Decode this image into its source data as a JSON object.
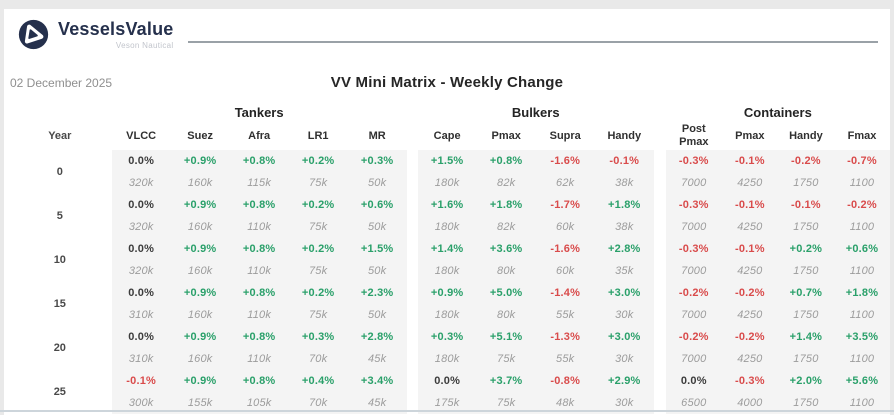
{
  "logo": {
    "brand": "VesselsValue",
    "sub_brand": "Veson Nautical"
  },
  "date": "02 December 2025",
  "title": "VV Mini Matrix - Weekly Change",
  "colors": {
    "positive_green": "#2aa06a",
    "negative_red": "#d94b4b",
    "neutral_dark": "#3c3c3c",
    "value_gray": "#9c9c9c",
    "block_background": "#f4f4f4",
    "brand_navy": "#25304c",
    "rule_gray": "#9aa1a7",
    "bottom_divider": "#cdd5db"
  },
  "table": {
    "year_header": "Year",
    "groups": [
      {
        "name": "Tankers",
        "columns": [
          "VLCC",
          "Suez",
          "Afra",
          "LR1",
          "MR"
        ]
      },
      {
        "name": "Bulkers",
        "columns": [
          "Cape",
          "Pmax",
          "Supra",
          "Handy"
        ]
      },
      {
        "name": "Containers",
        "columns": [
          "Post Pmax",
          "Pmax",
          "Handy",
          "Fmax"
        ]
      }
    ],
    "rows": [
      {
        "year": "0",
        "groups": [
          {
            "pct": [
              "0.0%",
              "+0.9%",
              "+0.8%",
              "+0.2%",
              "+0.3%"
            ],
            "values": [
              "320k",
              "160k",
              "115k",
              "75k",
              "50k"
            ]
          },
          {
            "pct": [
              "+1.5%",
              "+0.8%",
              "-1.6%",
              "-0.1%"
            ],
            "values": [
              "180k",
              "82k",
              "62k",
              "38k"
            ]
          },
          {
            "pct": [
              "-0.3%",
              "-0.1%",
              "-0.2%",
              "-0.7%"
            ],
            "values": [
              "7000",
              "4250",
              "1750",
              "1100"
            ]
          }
        ]
      },
      {
        "year": "5",
        "groups": [
          {
            "pct": [
              "0.0%",
              "+0.9%",
              "+0.8%",
              "+0.2%",
              "+0.6%"
            ],
            "values": [
              "320k",
              "160k",
              "110k",
              "75k",
              "50k"
            ]
          },
          {
            "pct": [
              "+1.6%",
              "+1.8%",
              "-1.7%",
              "+1.8%"
            ],
            "values": [
              "180k",
              "82k",
              "60k",
              "38k"
            ]
          },
          {
            "pct": [
              "-0.3%",
              "-0.1%",
              "-0.1%",
              "-0.2%"
            ],
            "values": [
              "7000",
              "4250",
              "1750",
              "1100"
            ]
          }
        ]
      },
      {
        "year": "10",
        "groups": [
          {
            "pct": [
              "0.0%",
              "+0.9%",
              "+0.8%",
              "+0.2%",
              "+1.5%"
            ],
            "values": [
              "320k",
              "160k",
              "110k",
              "75k",
              "50k"
            ]
          },
          {
            "pct": [
              "+1.4%",
              "+3.6%",
              "-1.6%",
              "+2.8%"
            ],
            "values": [
              "180k",
              "80k",
              "60k",
              "35k"
            ]
          },
          {
            "pct": [
              "-0.3%",
              "-0.1%",
              "+0.2%",
              "+0.6%"
            ],
            "values": [
              "7000",
              "4250",
              "1750",
              "1100"
            ]
          }
        ]
      },
      {
        "year": "15",
        "groups": [
          {
            "pct": [
              "0.0%",
              "+0.9%",
              "+0.8%",
              "+0.2%",
              "+2.3%"
            ],
            "values": [
              "310k",
              "160k",
              "110k",
              "75k",
              "50k"
            ]
          },
          {
            "pct": [
              "+0.9%",
              "+5.0%",
              "-1.4%",
              "+3.0%"
            ],
            "values": [
              "180k",
              "80k",
              "55k",
              "30k"
            ]
          },
          {
            "pct": [
              "-0.2%",
              "-0.2%",
              "+0.7%",
              "+1.8%"
            ],
            "values": [
              "7000",
              "4250",
              "1750",
              "1100"
            ]
          }
        ]
      },
      {
        "year": "20",
        "groups": [
          {
            "pct": [
              "0.0%",
              "+0.9%",
              "+0.8%",
              "+0.3%",
              "+2.8%"
            ],
            "values": [
              "310k",
              "160k",
              "110k",
              "70k",
              "45k"
            ]
          },
          {
            "pct": [
              "+0.3%",
              "+5.1%",
              "-1.3%",
              "+3.0%"
            ],
            "values": [
              "180k",
              "75k",
              "55k",
              "30k"
            ]
          },
          {
            "pct": [
              "-0.2%",
              "-0.2%",
              "+1.4%",
              "+3.5%"
            ],
            "values": [
              "7000",
              "4250",
              "1750",
              "1100"
            ]
          }
        ]
      },
      {
        "year": "25",
        "groups": [
          {
            "pct": [
              "-0.1%",
              "+0.9%",
              "+0.8%",
              "+0.4%",
              "+3.4%"
            ],
            "values": [
              "300k",
              "155k",
              "105k",
              "70k",
              "45k"
            ]
          },
          {
            "pct": [
              "0.0%",
              "+3.7%",
              "-0.8%",
              "+2.9%"
            ],
            "values": [
              "175k",
              "75k",
              "48k",
              "30k"
            ]
          },
          {
            "pct": [
              "0.0%",
              "-0.3%",
              "+2.0%",
              "+5.6%"
            ],
            "values": [
              "6500",
              "4000",
              "1750",
              "1100"
            ]
          }
        ]
      }
    ]
  }
}
